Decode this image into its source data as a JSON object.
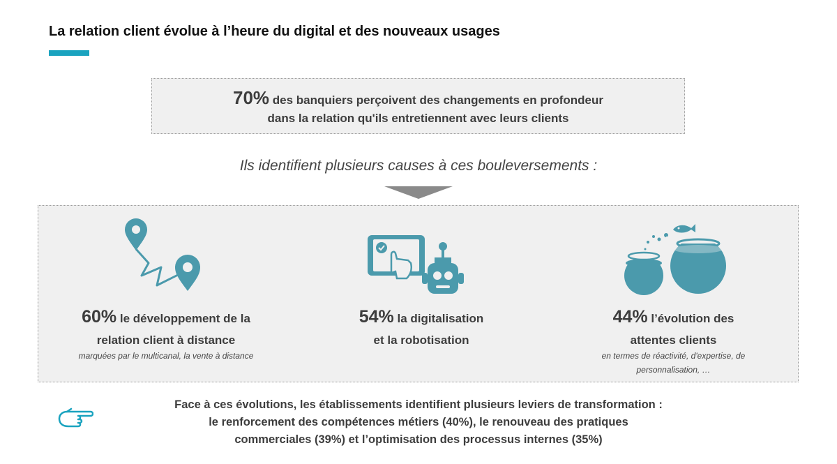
{
  "title": "La relation client évolue à l’heure du digital et des nouveaux usages",
  "colors": {
    "accent": "#1aa3bf",
    "icon": "#4b9aac",
    "box_bg": "#f0f0f0",
    "arrow": "#8a8a8a"
  },
  "highlight": {
    "percent": "70%",
    "line1": " des banquiers perçoivent des changements en profondeur",
    "line2": "dans la relation qu'ils entretiennent avec leurs clients"
  },
  "causes_heading": "Ils identifient plusieurs causes à ces bouleversements :",
  "causes": [
    {
      "icon": "map-route-icon",
      "percent": "60%",
      "label_a": " le développement de la",
      "label_b": "relation client à distance",
      "note_a": "marquées par le multicanal, la vente à distance",
      "note_b": ""
    },
    {
      "icon": "tablet-robot-icon",
      "percent": "54%",
      "label_a": " la digitalisation",
      "label_b": "et la robotisation",
      "note_a": "",
      "note_b": ""
    },
    {
      "icon": "fishbowl-icon",
      "percent": "44%",
      "label_a": " l’évolution des",
      "label_b": "attentes clients",
      "note_a": "en termes de réactivité, d'expertise, de",
      "note_b": "personnalisation, …"
    }
  ],
  "footer": {
    "icon": "pointing-hand-icon",
    "line1": "Face à ces évolutions, les établissements identifient plusieurs leviers de transformation :",
    "line2": "le renforcement des compétences métiers (40%), le renouveau des pratiques",
    "line3": "commerciales (39%) et l’optimisation des processus internes (35%)"
  }
}
